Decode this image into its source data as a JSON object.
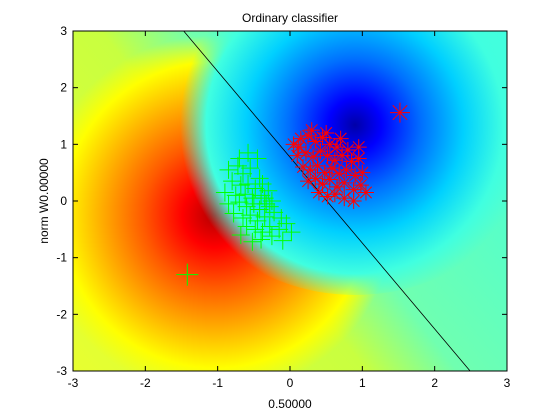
{
  "chart_data": {
    "type": "scatter",
    "title": "Ordinary classifier",
    "xlabel": "0.50000",
    "ylabel": "norm W0.00000",
    "xlim": [
      -3,
      3
    ],
    "ylim": [
      -3,
      3
    ],
    "xticks": [
      -3,
      -2,
      -1,
      0,
      1,
      2,
      3
    ],
    "yticks": [
      -3,
      -2,
      -1,
      0,
      1,
      2,
      3
    ],
    "grid": false,
    "background": "filled contour of classifier output (jet colormap): red region centered near (-0.5, -0.1), blue region centered near (0.9, 1.1), yellow/cyan in between",
    "colors": {
      "class1_marker": "#00ff00",
      "class2_marker": "#ff0000",
      "decision_boundary": "#000000",
      "red_peak": "#ff0000",
      "blue_peak": "#0000ff"
    },
    "decision_boundary": {
      "from": [
        -1.47,
        3
      ],
      "to": [
        2.49,
        -3
      ]
    },
    "series": [
      {
        "marker": "+",
        "points": [
          [
            -0.85,
            0.55
          ],
          [
            -0.72,
            0.62
          ],
          [
            -0.65,
            0.48
          ],
          [
            -0.55,
            0.58
          ],
          [
            -0.42,
            0.4
          ],
          [
            -0.8,
            0.35
          ],
          [
            -0.68,
            0.28
          ],
          [
            -0.58,
            0.3
          ],
          [
            -0.48,
            0.22
          ],
          [
            -0.38,
            0.3
          ],
          [
            -0.9,
            0.15
          ],
          [
            -0.75,
            0.1
          ],
          [
            -0.62,
            0.12
          ],
          [
            -0.52,
            0.05
          ],
          [
            -0.4,
            0.1
          ],
          [
            -0.3,
            0.18
          ],
          [
            -0.85,
            -0.05
          ],
          [
            -0.7,
            -0.02
          ],
          [
            -0.6,
            -0.1
          ],
          [
            -0.5,
            -0.05
          ],
          [
            -0.42,
            -0.15
          ],
          [
            -0.33,
            -0.05
          ],
          [
            -0.25,
            0.0
          ],
          [
            -0.78,
            -0.22
          ],
          [
            -0.65,
            -0.3
          ],
          [
            -0.55,
            -0.25
          ],
          [
            -0.45,
            -0.35
          ],
          [
            -0.35,
            -0.28
          ],
          [
            -0.22,
            -0.2
          ],
          [
            -0.12,
            -0.3
          ],
          [
            -0.6,
            -0.45
          ],
          [
            -0.48,
            -0.5
          ],
          [
            -0.38,
            -0.55
          ],
          [
            -0.28,
            -0.45
          ],
          [
            -0.15,
            -0.5
          ],
          [
            -0.05,
            -0.4
          ],
          [
            -0.68,
            -0.6
          ],
          [
            -0.52,
            -0.72
          ],
          [
            -0.4,
            -0.68
          ],
          [
            -0.25,
            -0.62
          ],
          [
            -0.1,
            -0.7
          ],
          [
            0.02,
            -0.55
          ],
          [
            -0.58,
            0.85
          ],
          [
            -0.45,
            0.75
          ],
          [
            -0.7,
            0.75
          ],
          [
            -0.35,
            0.05
          ],
          [
            -0.28,
            -0.1
          ],
          [
            -1.42,
            -1.3
          ]
        ]
      },
      {
        "marker": "*",
        "points": [
          [
            0.05,
            1.0
          ],
          [
            0.15,
            1.1
          ],
          [
            0.25,
            1.15
          ],
          [
            0.35,
            1.05
          ],
          [
            0.45,
            1.12
          ],
          [
            0.55,
            1.0
          ],
          [
            0.65,
            0.95
          ],
          [
            0.8,
            0.9
          ],
          [
            0.1,
            0.8
          ],
          [
            0.22,
            0.85
          ],
          [
            0.32,
            0.78
          ],
          [
            0.42,
            0.88
          ],
          [
            0.52,
            0.8
          ],
          [
            0.62,
            0.72
          ],
          [
            0.72,
            0.8
          ],
          [
            0.85,
            0.7
          ],
          [
            0.95,
            0.75
          ],
          [
            0.18,
            0.6
          ],
          [
            0.28,
            0.55
          ],
          [
            0.38,
            0.62
          ],
          [
            0.48,
            0.5
          ],
          [
            0.58,
            0.58
          ],
          [
            0.68,
            0.48
          ],
          [
            0.78,
            0.55
          ],
          [
            0.9,
            0.45
          ],
          [
            1.0,
            0.5
          ],
          [
            0.25,
            0.35
          ],
          [
            0.35,
            0.4
          ],
          [
            0.45,
            0.3
          ],
          [
            0.55,
            0.38
          ],
          [
            0.65,
            0.25
          ],
          [
            0.75,
            0.32
          ],
          [
            0.88,
            0.2
          ],
          [
            0.98,
            0.28
          ],
          [
            1.05,
            0.15
          ],
          [
            0.4,
            0.15
          ],
          [
            0.52,
            0.08
          ],
          [
            0.62,
            0.12
          ],
          [
            0.75,
            0.05
          ],
          [
            0.88,
            0.0
          ],
          [
            0.3,
            1.25
          ],
          [
            0.5,
            1.2
          ],
          [
            0.7,
            1.1
          ],
          [
            0.12,
            0.95
          ],
          [
            0.95,
            0.95
          ],
          [
            1.52,
            1.56
          ]
        ]
      }
    ]
  }
}
